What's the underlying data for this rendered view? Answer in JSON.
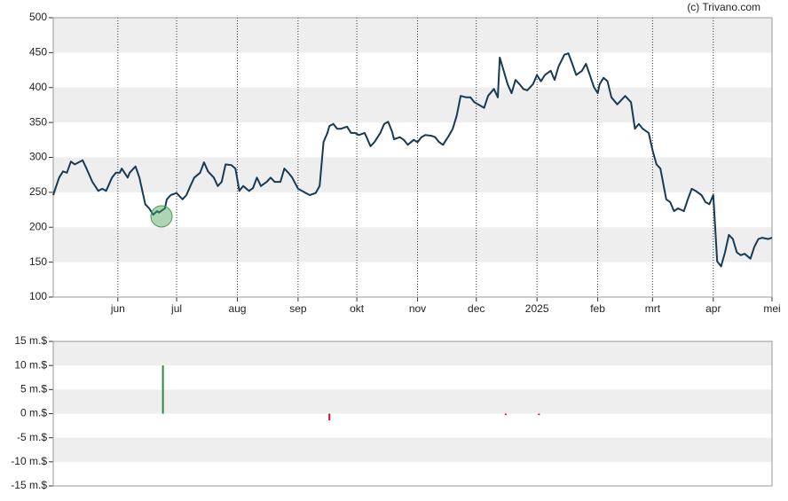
{
  "credit": "(c) Trivano.com",
  "chart_data": [
    {
      "type": "line",
      "color": "#173a55",
      "x": [
        0,
        3,
        5,
        7,
        9,
        11,
        15,
        17,
        20,
        23,
        25,
        27,
        30,
        32,
        34,
        35,
        38,
        39,
        42,
        44,
        47,
        49,
        51,
        53,
        54,
        57,
        58,
        60,
        63,
        66,
        68,
        70,
        72,
        75,
        77,
        79,
        82,
        84,
        86,
        88,
        91,
        93,
        95,
        97,
        100,
        102,
        104,
        106,
        109,
        111,
        113,
        116,
        118,
        120,
        122,
        125,
        127,
        129,
        131,
        134,
        136,
        138,
        140,
        141,
        143,
        145,
        147,
        150,
        152,
        154,
        156,
        159,
        160,
        162,
        164,
        167,
        169,
        171,
        173,
        174,
        177,
        179,
        181,
        184,
        186,
        188,
        190,
        193,
        195,
        197,
        199,
        202,
        204,
        206,
        208,
        211,
        213,
        215,
        217,
        220,
        222,
        225,
        227,
        228,
        230,
        232,
        234,
        236,
        238,
        240,
        242,
        245,
        247,
        249,
        251,
        254,
        256,
        258,
        261,
        263,
        265,
        267,
        270,
        272,
        274,
        276,
        278,
        279,
        281,
        283,
        285,
        288,
        290,
        292,
        295,
        297,
        299,
        301,
        304,
        306,
        308,
        310,
        313,
        315,
        317,
        319,
        322,
        324,
        326,
        328,
        331,
        333,
        335,
        337,
        339,
        341,
        343,
        345,
        347,
        349,
        351,
        353,
        356,
        358,
        360,
        362,
        365,
        367
      ],
      "values": [
        246,
        271,
        280,
        278,
        294,
        290,
        296,
        284,
        265,
        252,
        255,
        252,
        271,
        278,
        278,
        284,
        271,
        278,
        287,
        271,
        233,
        227,
        218,
        223,
        221,
        227,
        240,
        246,
        249,
        240,
        246,
        259,
        271,
        278,
        293,
        280,
        271,
        259,
        265,
        290,
        289,
        284,
        252,
        259,
        252,
        256,
        271,
        259,
        265,
        271,
        265,
        265,
        284,
        278,
        271,
        255,
        252,
        249,
        246,
        249,
        259,
        322,
        335,
        345,
        348,
        341,
        341,
        344,
        335,
        335,
        332,
        335,
        329,
        316,
        322,
        335,
        348,
        351,
        337,
        326,
        329,
        325,
        318,
        325,
        322,
        329,
        332,
        331,
        329,
        322,
        318,
        331,
        341,
        360,
        388,
        386,
        386,
        379,
        376,
        371,
        388,
        398,
        386,
        443,
        424,
        405,
        392,
        411,
        405,
        398,
        396,
        405,
        418,
        409,
        418,
        424,
        411,
        430,
        447,
        449,
        434,
        418,
        424,
        434,
        418,
        401,
        392,
        405,
        414,
        409,
        386,
        376,
        382,
        388,
        379,
        341,
        348,
        341,
        335,
        310,
        290,
        284,
        240,
        236,
        223,
        227,
        223,
        240,
        255,
        252,
        246,
        236,
        233,
        246,
        151,
        144,
        164,
        189,
        183,
        164,
        160,
        162,
        155,
        172,
        183,
        185,
        183,
        185
      ],
      "xlim": [
        0,
        367
      ],
      "xticks": [
        {
          "value": 33,
          "label": "jun"
        },
        {
          "value": 63,
          "label": "jul"
        },
        {
          "value": 94,
          "label": "aug"
        },
        {
          "value": 125,
          "label": "sep"
        },
        {
          "value": 155,
          "label": "okt"
        },
        {
          "value": 186,
          "label": "nov"
        },
        {
          "value": 216,
          "label": "dec"
        },
        {
          "value": 247,
          "label": "2025"
        },
        {
          "value": 278,
          "label": "feb"
        },
        {
          "value": 306,
          "label": "mrt"
        },
        {
          "value": 337,
          "label": "apr"
        },
        {
          "value": 367,
          "label": "mei"
        }
      ],
      "ylim": [
        100,
        500
      ],
      "yticks": [
        100,
        150,
        200,
        250,
        300,
        350,
        400,
        450,
        500
      ]
    },
    {
      "type": "bar",
      "x": [
        56,
        141,
        231,
        248
      ],
      "values": [
        10,
        -1.4,
        -0.3,
        -0.3
      ],
      "colors": [
        "#2e8b3e",
        "#cc1122",
        "#cc1122",
        "#cc1122"
      ],
      "xlim": [
        0,
        367
      ],
      "ylim": [
        -15,
        15
      ],
      "yticks": [
        {
          "value": -15,
          "label": "-15 m.$"
        },
        {
          "value": -10,
          "label": "-10 m.$"
        },
        {
          "value": -5,
          "label": "-5 m.$"
        },
        {
          "value": 0,
          "label": "0 m.$"
        },
        {
          "value": 5,
          "label": "5 m.$"
        },
        {
          "value": 10,
          "label": "10 m.$"
        },
        {
          "value": 15,
          "label": "15 m.$"
        }
      ]
    }
  ]
}
